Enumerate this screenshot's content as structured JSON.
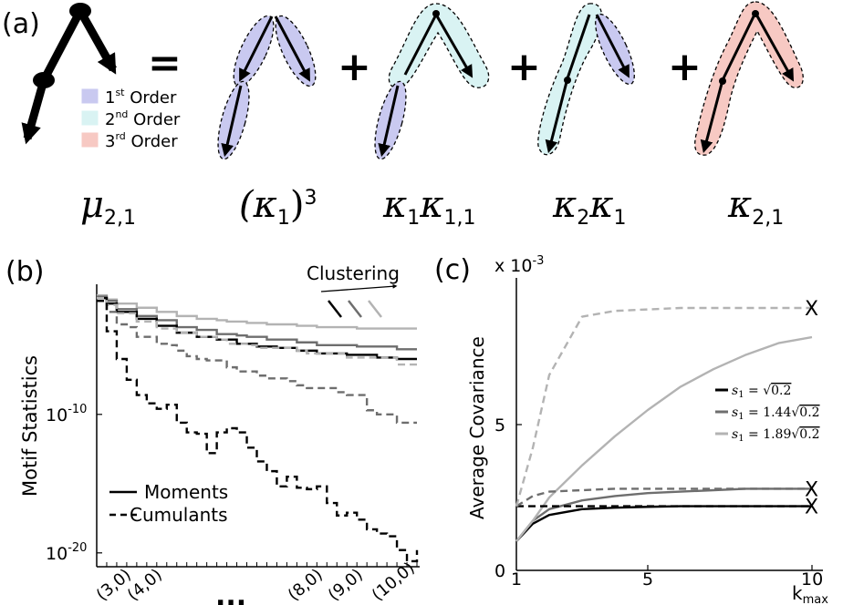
{
  "panel_labels": {
    "a": "(a)",
    "b": "(b)",
    "c": "(c)"
  },
  "panel_a": {
    "equals": "=",
    "plus": "+",
    "legend": [
      {
        "label_main": "1",
        "label_sup": "st",
        "label_rest": " Order",
        "color": "#c9c9f0"
      },
      {
        "label_main": "2",
        "label_sup": "nd",
        "label_rest": " Order",
        "color": "#d9f3f3"
      },
      {
        "label_main": "3",
        "label_sup": "rd",
        "label_rest": " Order",
        "color": "#f7c9c3"
      }
    ],
    "terms": {
      "mu": {
        "sym": "μ",
        "sub": "2,1"
      },
      "t1": {
        "sym": "(κ",
        "sub": "1",
        "close": ")",
        "sup": "3"
      },
      "t2": {
        "sym1": "κ",
        "sub1": "1",
        "sym2": "κ",
        "sub2": "1,1"
      },
      "t3": {
        "sym1": "κ",
        "sub1": "2",
        "sym2": "κ",
        "sub2": "1"
      },
      "t4": {
        "sym": "κ",
        "sub": "2,1"
      }
    }
  },
  "panel_b": {
    "chart_data": {
      "type": "line",
      "ylabel": "Motif Statistics",
      "yscale": "log",
      "yticks": [
        {
          "base": "10",
          "exp": "-10",
          "value": 1e-10
        },
        {
          "base": "10",
          "exp": "-20",
          "value": 1e-20
        }
      ],
      "xtick_labels": [
        "(3,0)",
        "(4,0)",
        "...",
        "(8,0)",
        "(9,0)",
        "(10,0)"
      ],
      "legend": {
        "solid": "Moments",
        "dashed": "Cumulants"
      },
      "clustering_label": "Clustering",
      "colors": {
        "low": "#000000",
        "mid": "#6e6e6e",
        "high": "#b3b3b3"
      },
      "series": [
        {
          "style": "solid",
          "shade": "high",
          "log10": [
            -1.4,
            -1.7,
            -2.0,
            -2.0,
            -2.3,
            -2.3,
            -2.6,
            -2.6,
            -2.9,
            -2.9,
            -3.1,
            -3.1,
            -3.2,
            -3.3,
            -3.3,
            -3.4,
            -3.4,
            -3.5,
            -3.5,
            -3.5,
            -3.6,
            -3.6,
            -3.7,
            -3.7,
            -3.7,
            -3.7,
            -3.8,
            -3.8,
            -3.8,
            -3.8,
            -3.8,
            -3.8,
            -3.8
          ]
        },
        {
          "style": "solid",
          "shade": "mid",
          "log10": [
            -1.5,
            -1.8,
            -2.4,
            -2.4,
            -2.9,
            -2.9,
            -3.2,
            -3.2,
            -3.7,
            -3.7,
            -3.9,
            -3.9,
            -4.2,
            -4.2,
            -4.3,
            -4.4,
            -4.4,
            -4.6,
            -4.6,
            -4.6,
            -4.8,
            -4.8,
            -5.0,
            -5.0,
            -5.0,
            -5.0,
            -5.1,
            -5.1,
            -5.1,
            -5.1,
            -5.3,
            -5.3,
            -5.3
          ]
        },
        {
          "style": "solid",
          "shade": "low",
          "log10": [
            -1.6,
            -2.0,
            -2.6,
            -2.6,
            -3.1,
            -3.1,
            -3.6,
            -3.6,
            -4.1,
            -4.1,
            -4.4,
            -4.4,
            -4.6,
            -4.6,
            -4.9,
            -4.9,
            -5.1,
            -5.1,
            -5.2,
            -5.2,
            -5.4,
            -5.4,
            -5.6,
            -5.6,
            -5.6,
            -5.7,
            -5.7,
            -5.7,
            -5.9,
            -5.9,
            -6.0,
            -6.0,
            -6.0
          ]
        },
        {
          "style": "dashed",
          "shade": "high",
          "log10": [
            -1.6,
            -2.1,
            -2.7,
            -2.7,
            -3.3,
            -3.3,
            -3.8,
            -3.8,
            -4.1,
            -4.1,
            -4.4,
            -4.4,
            -4.6,
            -4.9,
            -4.9,
            -5.0,
            -5.2,
            -5.2,
            -5.2,
            -5.2,
            -5.4,
            -5.6,
            -5.6,
            -5.6,
            -5.6,
            -5.9,
            -5.9,
            -5.9,
            -5.9,
            -5.9,
            -6.4,
            -6.4,
            -6.4
          ]
        },
        {
          "style": "dashed",
          "shade": "mid",
          "log10": [
            -1.8,
            -2.6,
            -3.5,
            -3.7,
            -4.4,
            -4.4,
            -4.9,
            -5.0,
            -5.4,
            -5.8,
            -6.0,
            -6.1,
            -6.1,
            -6.6,
            -6.9,
            -6.9,
            -7.2,
            -7.4,
            -7.4,
            -7.6,
            -7.9,
            -8.1,
            -8.1,
            -8.1,
            -8.4,
            -8.6,
            -8.6,
            -9.7,
            -10.0,
            -10.0,
            -10.6,
            -10.6,
            -10.6
          ]
        },
        {
          "style": "dashed",
          "shade": "low",
          "log10": [
            -1.8,
            -4.0,
            -6.0,
            -7.5,
            -8.6,
            -9.2,
            -9.6,
            -9.3,
            -10.6,
            -11.3,
            -11.4,
            -12.8,
            -11.3,
            -11.0,
            -11.3,
            -12.4,
            -13.4,
            -14.1,
            -15.2,
            -14.5,
            -15.3,
            -15.4,
            -15.2,
            -16.4,
            -17.3,
            -17.1,
            -17.6,
            -18.3,
            -18.6,
            -18.8,
            -19.8,
            -20.6,
            -19.8
          ]
        }
      ]
    }
  },
  "panel_c": {
    "chart_data": {
      "type": "line",
      "ylabel": "Average Covariance",
      "xlabel": "k",
      "xlabel_sub": "max",
      "scale_label": "x 10",
      "scale_exp": "-3",
      "xticks": [
        "1",
        "5",
        "10"
      ],
      "yticks": [
        "0",
        "5"
      ],
      "xlim": [
        1,
        10
      ],
      "ylim": [
        0,
        10
      ],
      "legend": [
        {
          "pre": "s",
          "sub": "1",
          "eq": " = ",
          "coef": "",
          "rad": "0.2",
          "shade": "low"
        },
        {
          "pre": "s",
          "sub": "1",
          "eq": " = ",
          "coef": "1.44",
          "rad": "0.2",
          "shade": "mid"
        },
        {
          "pre": "s",
          "sub": "1",
          "eq": " = ",
          "coef": "1.89",
          "rad": "0.2",
          "shade": "high"
        }
      ],
      "x_marker": "X",
      "x": [
        1,
        1.5,
        2,
        3,
        4,
        5,
        6,
        7,
        8,
        9,
        10
      ],
      "series": [
        {
          "style": "solid",
          "shade": "low",
          "values": [
            1.0,
            1.6,
            1.9,
            2.1,
            2.15,
            2.18,
            2.2,
            2.2,
            2.2,
            2.2,
            2.2
          ]
        },
        {
          "style": "solid",
          "shade": "mid",
          "values": [
            1.0,
            1.7,
            2.1,
            2.4,
            2.55,
            2.65,
            2.7,
            2.75,
            2.8,
            2.8,
            2.8
          ]
        },
        {
          "style": "solid",
          "shade": "high",
          "values": [
            1.0,
            1.7,
            2.5,
            3.6,
            4.6,
            5.5,
            6.3,
            6.9,
            7.4,
            7.8,
            8.0
          ]
        },
        {
          "style": "dashed",
          "shade": "low",
          "values": [
            2.2,
            2.2,
            2.2,
            2.2,
            2.2,
            2.2,
            2.2,
            2.2,
            2.2,
            2.2,
            2.2
          ]
        },
        {
          "style": "dashed",
          "shade": "mid",
          "values": [
            2.2,
            2.55,
            2.7,
            2.75,
            2.8,
            2.8,
            2.8,
            2.8,
            2.8,
            2.8,
            2.8
          ]
        },
        {
          "style": "dashed",
          "shade": "high",
          "values": [
            2.2,
            4.2,
            6.7,
            8.7,
            8.9,
            8.95,
            9.0,
            9.0,
            9.0,
            9.0,
            9.0
          ]
        }
      ]
    }
  }
}
